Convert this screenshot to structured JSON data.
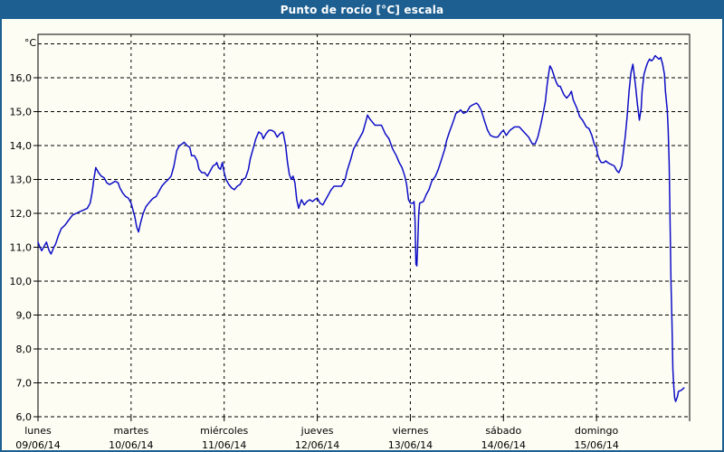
{
  "window": {
    "title": "Punto de rocío [°C] escala"
  },
  "colors": {
    "titlebar": "#1d5f90",
    "frame": "#1d5f90",
    "background": "#fdfdf4",
    "line": "#0e0ec6",
    "grid": "#000000",
    "text": "#000000"
  },
  "chart_data": {
    "type": "line",
    "title": "Punto de rocío [°C] escala",
    "unit_label": "°C",
    "ylabel": "Punto de rocío [°C]",
    "ylim": [
      6,
      17.3
    ],
    "grid": "dashed",
    "legend_position": "none",
    "y_tick_values": [
      16,
      15,
      14,
      13,
      12,
      11,
      10,
      9,
      8,
      7,
      6
    ],
    "y_tick_labels": [
      "16,0",
      "15,0",
      "14,0",
      "13,0",
      "12,0",
      "11,0",
      "10,0",
      "9,0",
      "8,0",
      "7,0",
      "6,0"
    ],
    "y_grid_values": [
      6,
      7,
      8,
      9,
      10,
      11,
      12,
      13,
      14,
      15,
      16,
      17
    ],
    "x_range_days": [
      0,
      7
    ],
    "x_days": [
      {
        "name": "lunes",
        "date": "09/06/14"
      },
      {
        "name": "martes",
        "date": "10/06/14"
      },
      {
        "name": "miércoles",
        "date": "11/06/14"
      },
      {
        "name": "jueves",
        "date": "12/06/14"
      },
      {
        "name": "viernes",
        "date": "13/06/14"
      },
      {
        "name": "sábado",
        "date": "14/06/14"
      },
      {
        "name": "domingo",
        "date": "15/06/14"
      }
    ],
    "series": [
      {
        "name": "Punto de rocío",
        "color": "#0e0ec6",
        "points": [
          [
            0.0,
            11.15
          ],
          [
            0.02,
            11.0
          ],
          [
            0.04,
            10.9
          ],
          [
            0.07,
            11.05
          ],
          [
            0.09,
            11.15
          ],
          [
            0.12,
            10.9
          ],
          [
            0.14,
            10.8
          ],
          [
            0.17,
            11.0
          ],
          [
            0.19,
            11.1
          ],
          [
            0.22,
            11.35
          ],
          [
            0.25,
            11.55
          ],
          [
            0.29,
            11.65
          ],
          [
            0.33,
            11.8
          ],
          [
            0.37,
            11.95
          ],
          [
            0.41,
            12.0
          ],
          [
            0.45,
            12.05
          ],
          [
            0.49,
            12.1
          ],
          [
            0.53,
            12.15
          ],
          [
            0.56,
            12.3
          ],
          [
            0.58,
            12.6
          ],
          [
            0.6,
            13.0
          ],
          [
            0.62,
            13.35
          ],
          [
            0.65,
            13.2
          ],
          [
            0.68,
            13.1
          ],
          [
            0.71,
            13.05
          ],
          [
            0.74,
            12.9
          ],
          [
            0.77,
            12.85
          ],
          [
            0.8,
            12.9
          ],
          [
            0.83,
            12.95
          ],
          [
            0.86,
            12.9
          ],
          [
            0.88,
            12.75
          ],
          [
            0.91,
            12.6
          ],
          [
            0.94,
            12.5
          ],
          [
            0.97,
            12.45
          ],
          [
            1.0,
            12.3
          ],
          [
            1.02,
            12.1
          ],
          [
            1.04,
            11.9
          ],
          [
            1.06,
            11.6
          ],
          [
            1.08,
            11.45
          ],
          [
            1.1,
            11.7
          ],
          [
            1.13,
            12.0
          ],
          [
            1.16,
            12.2
          ],
          [
            1.19,
            12.3
          ],
          [
            1.22,
            12.4
          ],
          [
            1.24,
            12.45
          ],
          [
            1.27,
            12.5
          ],
          [
            1.3,
            12.65
          ],
          [
            1.33,
            12.8
          ],
          [
            1.36,
            12.9
          ],
          [
            1.4,
            13.0
          ],
          [
            1.43,
            13.1
          ],
          [
            1.46,
            13.4
          ],
          [
            1.49,
            13.85
          ],
          [
            1.52,
            14.0
          ],
          [
            1.55,
            14.05
          ],
          [
            1.57,
            14.1
          ],
          [
            1.6,
            14.0
          ],
          [
            1.63,
            13.95
          ],
          [
            1.65,
            13.7
          ],
          [
            1.68,
            13.7
          ],
          [
            1.71,
            13.55
          ],
          [
            1.73,
            13.3
          ],
          [
            1.76,
            13.2
          ],
          [
            1.79,
            13.2
          ],
          [
            1.82,
            13.1
          ],
          [
            1.85,
            13.25
          ],
          [
            1.88,
            13.4
          ],
          [
            1.91,
            13.45
          ],
          [
            1.92,
            13.5
          ],
          [
            1.94,
            13.35
          ],
          [
            1.96,
            13.3
          ],
          [
            1.98,
            13.5
          ],
          [
            2.0,
            13.2
          ],
          [
            2.02,
            13.0
          ],
          [
            2.05,
            12.85
          ],
          [
            2.08,
            12.75
          ],
          [
            2.11,
            12.7
          ],
          [
            2.14,
            12.8
          ],
          [
            2.17,
            12.85
          ],
          [
            2.2,
            13.0
          ],
          [
            2.23,
            13.05
          ],
          [
            2.26,
            13.3
          ],
          [
            2.28,
            13.6
          ],
          [
            2.31,
            13.9
          ],
          [
            2.34,
            14.2
          ],
          [
            2.37,
            14.4
          ],
          [
            2.4,
            14.35
          ],
          [
            2.42,
            14.2
          ],
          [
            2.45,
            14.35
          ],
          [
            2.48,
            14.45
          ],
          [
            2.51,
            14.45
          ],
          [
            2.54,
            14.4
          ],
          [
            2.57,
            14.25
          ],
          [
            2.6,
            14.35
          ],
          [
            2.63,
            14.4
          ],
          [
            2.64,
            14.3
          ],
          [
            2.66,
            14.0
          ],
          [
            2.68,
            13.5
          ],
          [
            2.7,
            13.15
          ],
          [
            2.72,
            13.0
          ],
          [
            2.74,
            13.1
          ],
          [
            2.76,
            12.9
          ],
          [
            2.78,
            12.4
          ],
          [
            2.8,
            12.15
          ],
          [
            2.83,
            12.4
          ],
          [
            2.86,
            12.25
          ],
          [
            2.89,
            12.35
          ],
          [
            2.92,
            12.4
          ],
          [
            2.95,
            12.35
          ],
          [
            2.97,
            12.4
          ],
          [
            3.0,
            12.45
          ],
          [
            3.03,
            12.3
          ],
          [
            3.06,
            12.25
          ],
          [
            3.09,
            12.4
          ],
          [
            3.12,
            12.55
          ],
          [
            3.15,
            12.7
          ],
          [
            3.18,
            12.8
          ],
          [
            3.22,
            12.8
          ],
          [
            3.26,
            12.8
          ],
          [
            3.3,
            13.0
          ],
          [
            3.32,
            13.25
          ],
          [
            3.36,
            13.6
          ],
          [
            3.39,
            13.9
          ],
          [
            3.42,
            14.05
          ],
          [
            3.46,
            14.25
          ],
          [
            3.49,
            14.4
          ],
          [
            3.52,
            14.7
          ],
          [
            3.54,
            14.9
          ],
          [
            3.56,
            14.8
          ],
          [
            3.59,
            14.7
          ],
          [
            3.62,
            14.6
          ],
          [
            3.66,
            14.6
          ],
          [
            3.69,
            14.6
          ],
          [
            3.73,
            14.35
          ],
          [
            3.77,
            14.2
          ],
          [
            3.81,
            13.9
          ],
          [
            3.85,
            13.7
          ],
          [
            3.88,
            13.5
          ],
          [
            3.91,
            13.35
          ],
          [
            3.94,
            13.1
          ],
          [
            3.96,
            12.85
          ],
          [
            3.98,
            12.4
          ],
          [
            4.0,
            12.3
          ],
          [
            4.03,
            12.3
          ],
          [
            4.04,
            12.35
          ],
          [
            4.05,
            11.8
          ],
          [
            4.06,
            10.5
          ],
          [
            4.07,
            10.45
          ],
          [
            4.08,
            11.2
          ],
          [
            4.09,
            12.0
          ],
          [
            4.1,
            12.3
          ],
          [
            4.14,
            12.35
          ],
          [
            4.17,
            12.55
          ],
          [
            4.2,
            12.7
          ],
          [
            4.23,
            12.95
          ],
          [
            4.27,
            13.1
          ],
          [
            4.3,
            13.3
          ],
          [
            4.33,
            13.55
          ],
          [
            4.37,
            13.9
          ],
          [
            4.39,
            14.15
          ],
          [
            4.42,
            14.4
          ],
          [
            4.46,
            14.7
          ],
          [
            4.49,
            14.95
          ],
          [
            4.52,
            15.0
          ],
          [
            4.54,
            15.05
          ],
          [
            4.57,
            14.95
          ],
          [
            4.61,
            15.0
          ],
          [
            4.64,
            15.15
          ],
          [
            4.67,
            15.2
          ],
          [
            4.71,
            15.25
          ],
          [
            4.73,
            15.2
          ],
          [
            4.76,
            15.05
          ],
          [
            4.8,
            14.7
          ],
          [
            4.83,
            14.45
          ],
          [
            4.86,
            14.3
          ],
          [
            4.9,
            14.25
          ],
          [
            4.94,
            14.25
          ],
          [
            4.98,
            14.4
          ],
          [
            5.0,
            14.45
          ],
          [
            5.03,
            14.3
          ],
          [
            5.07,
            14.45
          ],
          [
            5.12,
            14.55
          ],
          [
            5.17,
            14.55
          ],
          [
            5.22,
            14.4
          ],
          [
            5.27,
            14.25
          ],
          [
            5.31,
            14.05
          ],
          [
            5.34,
            14.05
          ],
          [
            5.37,
            14.25
          ],
          [
            5.4,
            14.6
          ],
          [
            5.43,
            15.0
          ],
          [
            5.45,
            15.3
          ],
          [
            5.47,
            15.8
          ],
          [
            5.49,
            16.2
          ],
          [
            5.5,
            16.35
          ],
          [
            5.52,
            16.25
          ],
          [
            5.55,
            16.0
          ],
          [
            5.57,
            15.85
          ],
          [
            5.59,
            15.75
          ],
          [
            5.61,
            15.75
          ],
          [
            5.65,
            15.5
          ],
          [
            5.68,
            15.4
          ],
          [
            5.71,
            15.5
          ],
          [
            5.73,
            15.6
          ],
          [
            5.75,
            15.35
          ],
          [
            5.79,
            15.1
          ],
          [
            5.82,
            14.85
          ],
          [
            5.85,
            14.75
          ],
          [
            5.89,
            14.55
          ],
          [
            5.92,
            14.5
          ],
          [
            5.95,
            14.3
          ],
          [
            5.98,
            14.0
          ],
          [
            6.0,
            13.95
          ],
          [
            6.01,
            13.75
          ],
          [
            6.03,
            13.6
          ],
          [
            6.05,
            13.5
          ],
          [
            6.08,
            13.5
          ],
          [
            6.1,
            13.55
          ],
          [
            6.12,
            13.5
          ],
          [
            6.15,
            13.45
          ],
          [
            6.19,
            13.4
          ],
          [
            6.22,
            13.25
          ],
          [
            6.24,
            13.2
          ],
          [
            6.27,
            13.4
          ],
          [
            6.29,
            13.85
          ],
          [
            6.31,
            14.3
          ],
          [
            6.33,
            14.9
          ],
          [
            6.35,
            15.6
          ],
          [
            6.37,
            16.15
          ],
          [
            6.39,
            16.4
          ],
          [
            6.4,
            16.2
          ],
          [
            6.42,
            15.75
          ],
          [
            6.44,
            15.2
          ],
          [
            6.46,
            14.75
          ],
          [
            6.48,
            15.1
          ],
          [
            6.49,
            15.6
          ],
          [
            6.51,
            16.1
          ],
          [
            6.53,
            16.3
          ],
          [
            6.55,
            16.45
          ],
          [
            6.57,
            16.55
          ],
          [
            6.59,
            16.5
          ],
          [
            6.61,
            16.55
          ],
          [
            6.63,
            16.65
          ],
          [
            6.65,
            16.6
          ],
          [
            6.67,
            16.55
          ],
          [
            6.69,
            16.6
          ],
          [
            6.71,
            16.4
          ],
          [
            6.73,
            16.1
          ],
          [
            6.74,
            15.6
          ],
          [
            6.76,
            15.05
          ],
          [
            6.77,
            14.5
          ],
          [
            6.78,
            13.5
          ],
          [
            6.79,
            11.8
          ],
          [
            6.8,
            10.0
          ],
          [
            6.81,
            8.8
          ],
          [
            6.82,
            7.4
          ],
          [
            6.83,
            6.9
          ],
          [
            6.84,
            6.55
          ],
          [
            6.85,
            6.45
          ],
          [
            6.87,
            6.6
          ],
          [
            6.88,
            6.75
          ],
          [
            6.91,
            6.78
          ],
          [
            6.94,
            6.85
          ]
        ]
      }
    ]
  }
}
